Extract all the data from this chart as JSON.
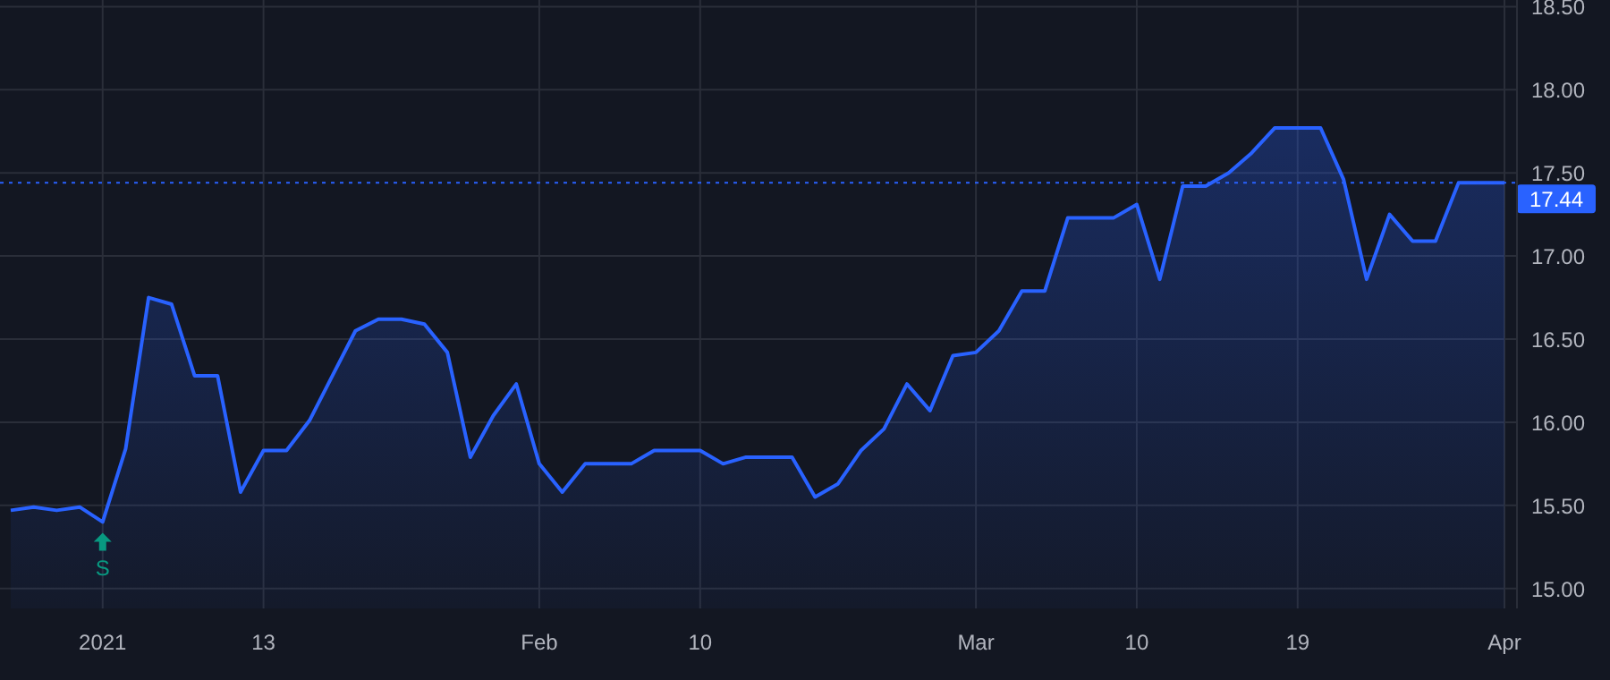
{
  "chart_data": {
    "type": "area",
    "categories": [
      null,
      null,
      null,
      null,
      "2021",
      null,
      null,
      null,
      null,
      null,
      null,
      "13",
      null,
      null,
      null,
      null,
      null,
      null,
      null,
      null,
      null,
      null,
      null,
      "Feb",
      null,
      null,
      null,
      null,
      null,
      null,
      "10",
      null,
      null,
      null,
      null,
      null,
      null,
      null,
      null,
      null,
      null,
      null,
      "Mar",
      null,
      null,
      null,
      null,
      null,
      null,
      "10",
      null,
      null,
      null,
      null,
      null,
      null,
      "19",
      null,
      null,
      null,
      null,
      null,
      null,
      null,
      null,
      "Apr"
    ],
    "series": [
      {
        "color": "#2962ff",
        "values": [
          15.47,
          15.49,
          15.47,
          15.49,
          15.4,
          15.84,
          16.75,
          16.71,
          16.28,
          16.28,
          15.58,
          15.83,
          15.83,
          16.01,
          16.28,
          16.55,
          16.62,
          16.62,
          16.59,
          16.42,
          15.79,
          16.04,
          16.23,
          15.75,
          15.58,
          15.75,
          15.75,
          15.75,
          15.83,
          15.83,
          15.83,
          15.75,
          15.79,
          15.79,
          15.79,
          15.55,
          15.63,
          15.83,
          15.96,
          16.23,
          16.07,
          16.4,
          16.42,
          16.55,
          16.79,
          16.79,
          17.23,
          17.23,
          17.23,
          17.31,
          16.86,
          17.42,
          17.42,
          17.5,
          17.62,
          17.77,
          17.77,
          17.77,
          17.46,
          16.86,
          17.25,
          17.09,
          17.09,
          17.44,
          17.44,
          17.44
        ]
      }
    ],
    "ylim": [
      14.88,
      18.54
    ],
    "yticks": [
      {
        "value": 15,
        "label": "15.00"
      },
      {
        "value": 15.5,
        "label": "15.50"
      },
      {
        "value": 16,
        "label": "16.00"
      },
      {
        "value": 16.5,
        "label": "16.50"
      },
      {
        "value": 17,
        "label": "17.00"
      },
      {
        "value": 17.5,
        "label": "17.50"
      },
      {
        "value": 18,
        "label": "18.00"
      },
      {
        "value": 18.5,
        "label": "18.50"
      }
    ],
    "grid": true,
    "ref_lines": [
      {
        "axis": "y",
        "value": 17.44,
        "label": "17.44",
        "color": "#2962ff",
        "line_style": "dotted"
      }
    ],
    "annotations": [
      {
        "text": "S",
        "x": "2021",
        "y": 15.4
      }
    ]
  }
}
